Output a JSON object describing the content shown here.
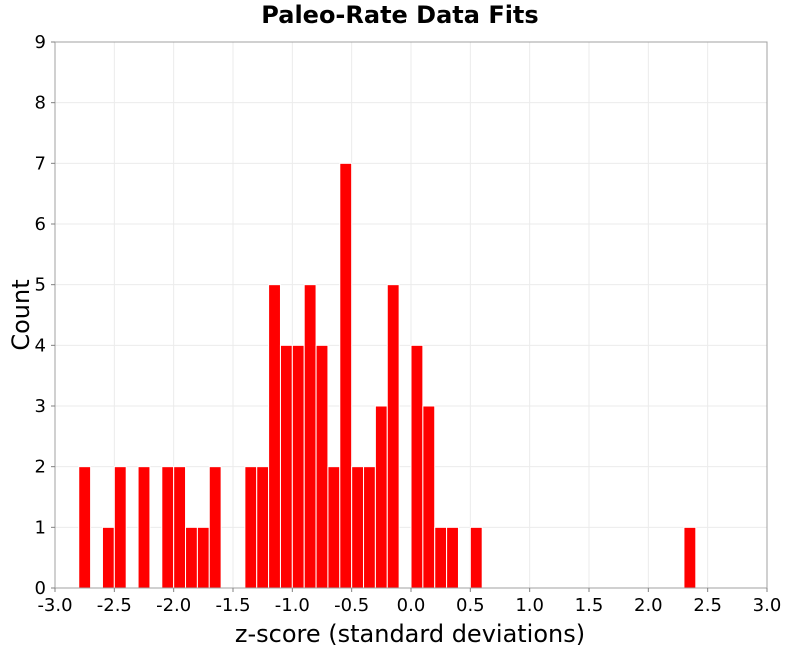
{
  "chart_data": {
    "type": "bar",
    "title": "Paleo-Rate Data Fits",
    "xlabel": "z-score (standard deviations)",
    "ylabel": "Count",
    "xlim": [
      -3.0,
      3.0
    ],
    "ylim": [
      0,
      9
    ],
    "x_ticks": [
      "-3.0",
      "-2.5",
      "-2.0",
      "-1.5",
      "-1.0",
      "-0.5",
      "0.0",
      "0.5",
      "1.0",
      "1.5",
      "2.0",
      "2.5",
      "3.0"
    ],
    "y_ticks": [
      "0",
      "1",
      "2",
      "3",
      "4",
      "5",
      "6",
      "7",
      "8",
      "9"
    ],
    "bin_width": 0.1,
    "x": [
      -2.75,
      -2.55,
      -2.45,
      -2.25,
      -2.05,
      -1.95,
      -1.85,
      -1.75,
      -1.65,
      -1.35,
      -1.25,
      -1.15,
      -1.05,
      -0.95,
      -0.85,
      -0.75,
      -0.65,
      -0.55,
      -0.45,
      -0.35,
      -0.25,
      -0.15,
      0.05,
      0.15,
      0.25,
      0.35,
      0.55,
      2.35
    ],
    "values": [
      2,
      1,
      2,
      2,
      2,
      2,
      1,
      1,
      2,
      2,
      2,
      5,
      4,
      4,
      5,
      4,
      2,
      7,
      2,
      2,
      3,
      5,
      4,
      3,
      1,
      1,
      1,
      1
    ],
    "grid": true,
    "bar_color": "#ff0000",
    "bar_edge_color": "#ffffff",
    "grid_color": "#ebebeb",
    "frame_color": "#a0a0a0"
  }
}
